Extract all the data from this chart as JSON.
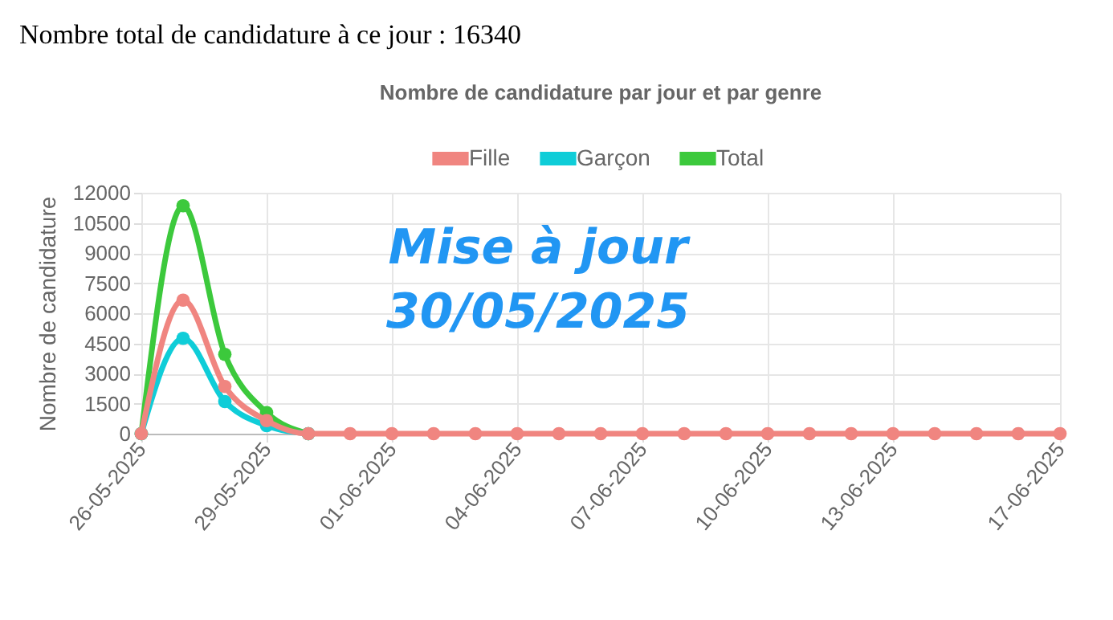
{
  "chart_data": {
    "type": "line",
    "title": "Nombre total de candidature à ce jour : 16340",
    "subtitle": "Nombre de candidature par jour et par genre",
    "ylabel": "Nombre de candidature",
    "annotations": [
      "Mise à jour 30/05/2025"
    ],
    "x": [
      "2025-05-26",
      "2025-05-27",
      "2025-05-28",
      "2025-05-29",
      "2025-05-30",
      "2025-05-31",
      "2025-06-01",
      "2025-06-02",
      "2025-06-03",
      "2025-06-04",
      "2025-06-05",
      "2025-06-06",
      "2025-06-07",
      "2025-06-08",
      "2025-06-09",
      "2025-06-10",
      "2025-06-11",
      "2025-06-12",
      "2025-06-13",
      "2025-06-14",
      "2025-06-15",
      "2025-06-16",
      "2025-06-17"
    ],
    "series": [
      {
        "name": "Fille",
        "color": "#f08580",
        "values": [
          0,
          6650,
          2350,
          650,
          0,
          0,
          0,
          0,
          0,
          0,
          0,
          0,
          0,
          0,
          0,
          0,
          0,
          0,
          0,
          0,
          0,
          0,
          0
        ]
      },
      {
        "name": "Garçon",
        "color": "#0fcdd8",
        "values": [
          0,
          4750,
          1600,
          400,
          0,
          null,
          null,
          null,
          null,
          null,
          null,
          null,
          null,
          null,
          null,
          null,
          null,
          null,
          null,
          null,
          null,
          null,
          null
        ]
      },
      {
        "name": "Total",
        "color": "#3cc93c",
        "values": [
          0,
          11350,
          3950,
          1050,
          0,
          null,
          null,
          null,
          null,
          null,
          null,
          null,
          null,
          null,
          null,
          null,
          null,
          null,
          null,
          null,
          null,
          null,
          null
        ]
      }
    ],
    "xlim": [
      "2025-05-26",
      "2025-06-17"
    ],
    "xticks": [
      {
        "value": "2025-05-26",
        "label": "26-05-2025"
      },
      {
        "value": "2025-05-29",
        "label": "29-05-2025"
      },
      {
        "value": "2025-06-01",
        "label": "01-06-2025"
      },
      {
        "value": "2025-06-04",
        "label": "04-06-2025"
      },
      {
        "value": "2025-06-07",
        "label": "07-06-2025"
      },
      {
        "value": "2025-06-10",
        "label": "10-06-2025"
      },
      {
        "value": "2025-06-13",
        "label": "13-06-2025"
      },
      {
        "value": "2025-06-17",
        "label": "17-06-2025"
      }
    ],
    "ylim": [
      0,
      12000
    ],
    "yticks": [
      0,
      1500,
      3000,
      4500,
      6000,
      7500,
      9000,
      10500,
      12000
    ],
    "grid": true,
    "legend": "top",
    "marker": "circle",
    "line_style": "solid"
  }
}
